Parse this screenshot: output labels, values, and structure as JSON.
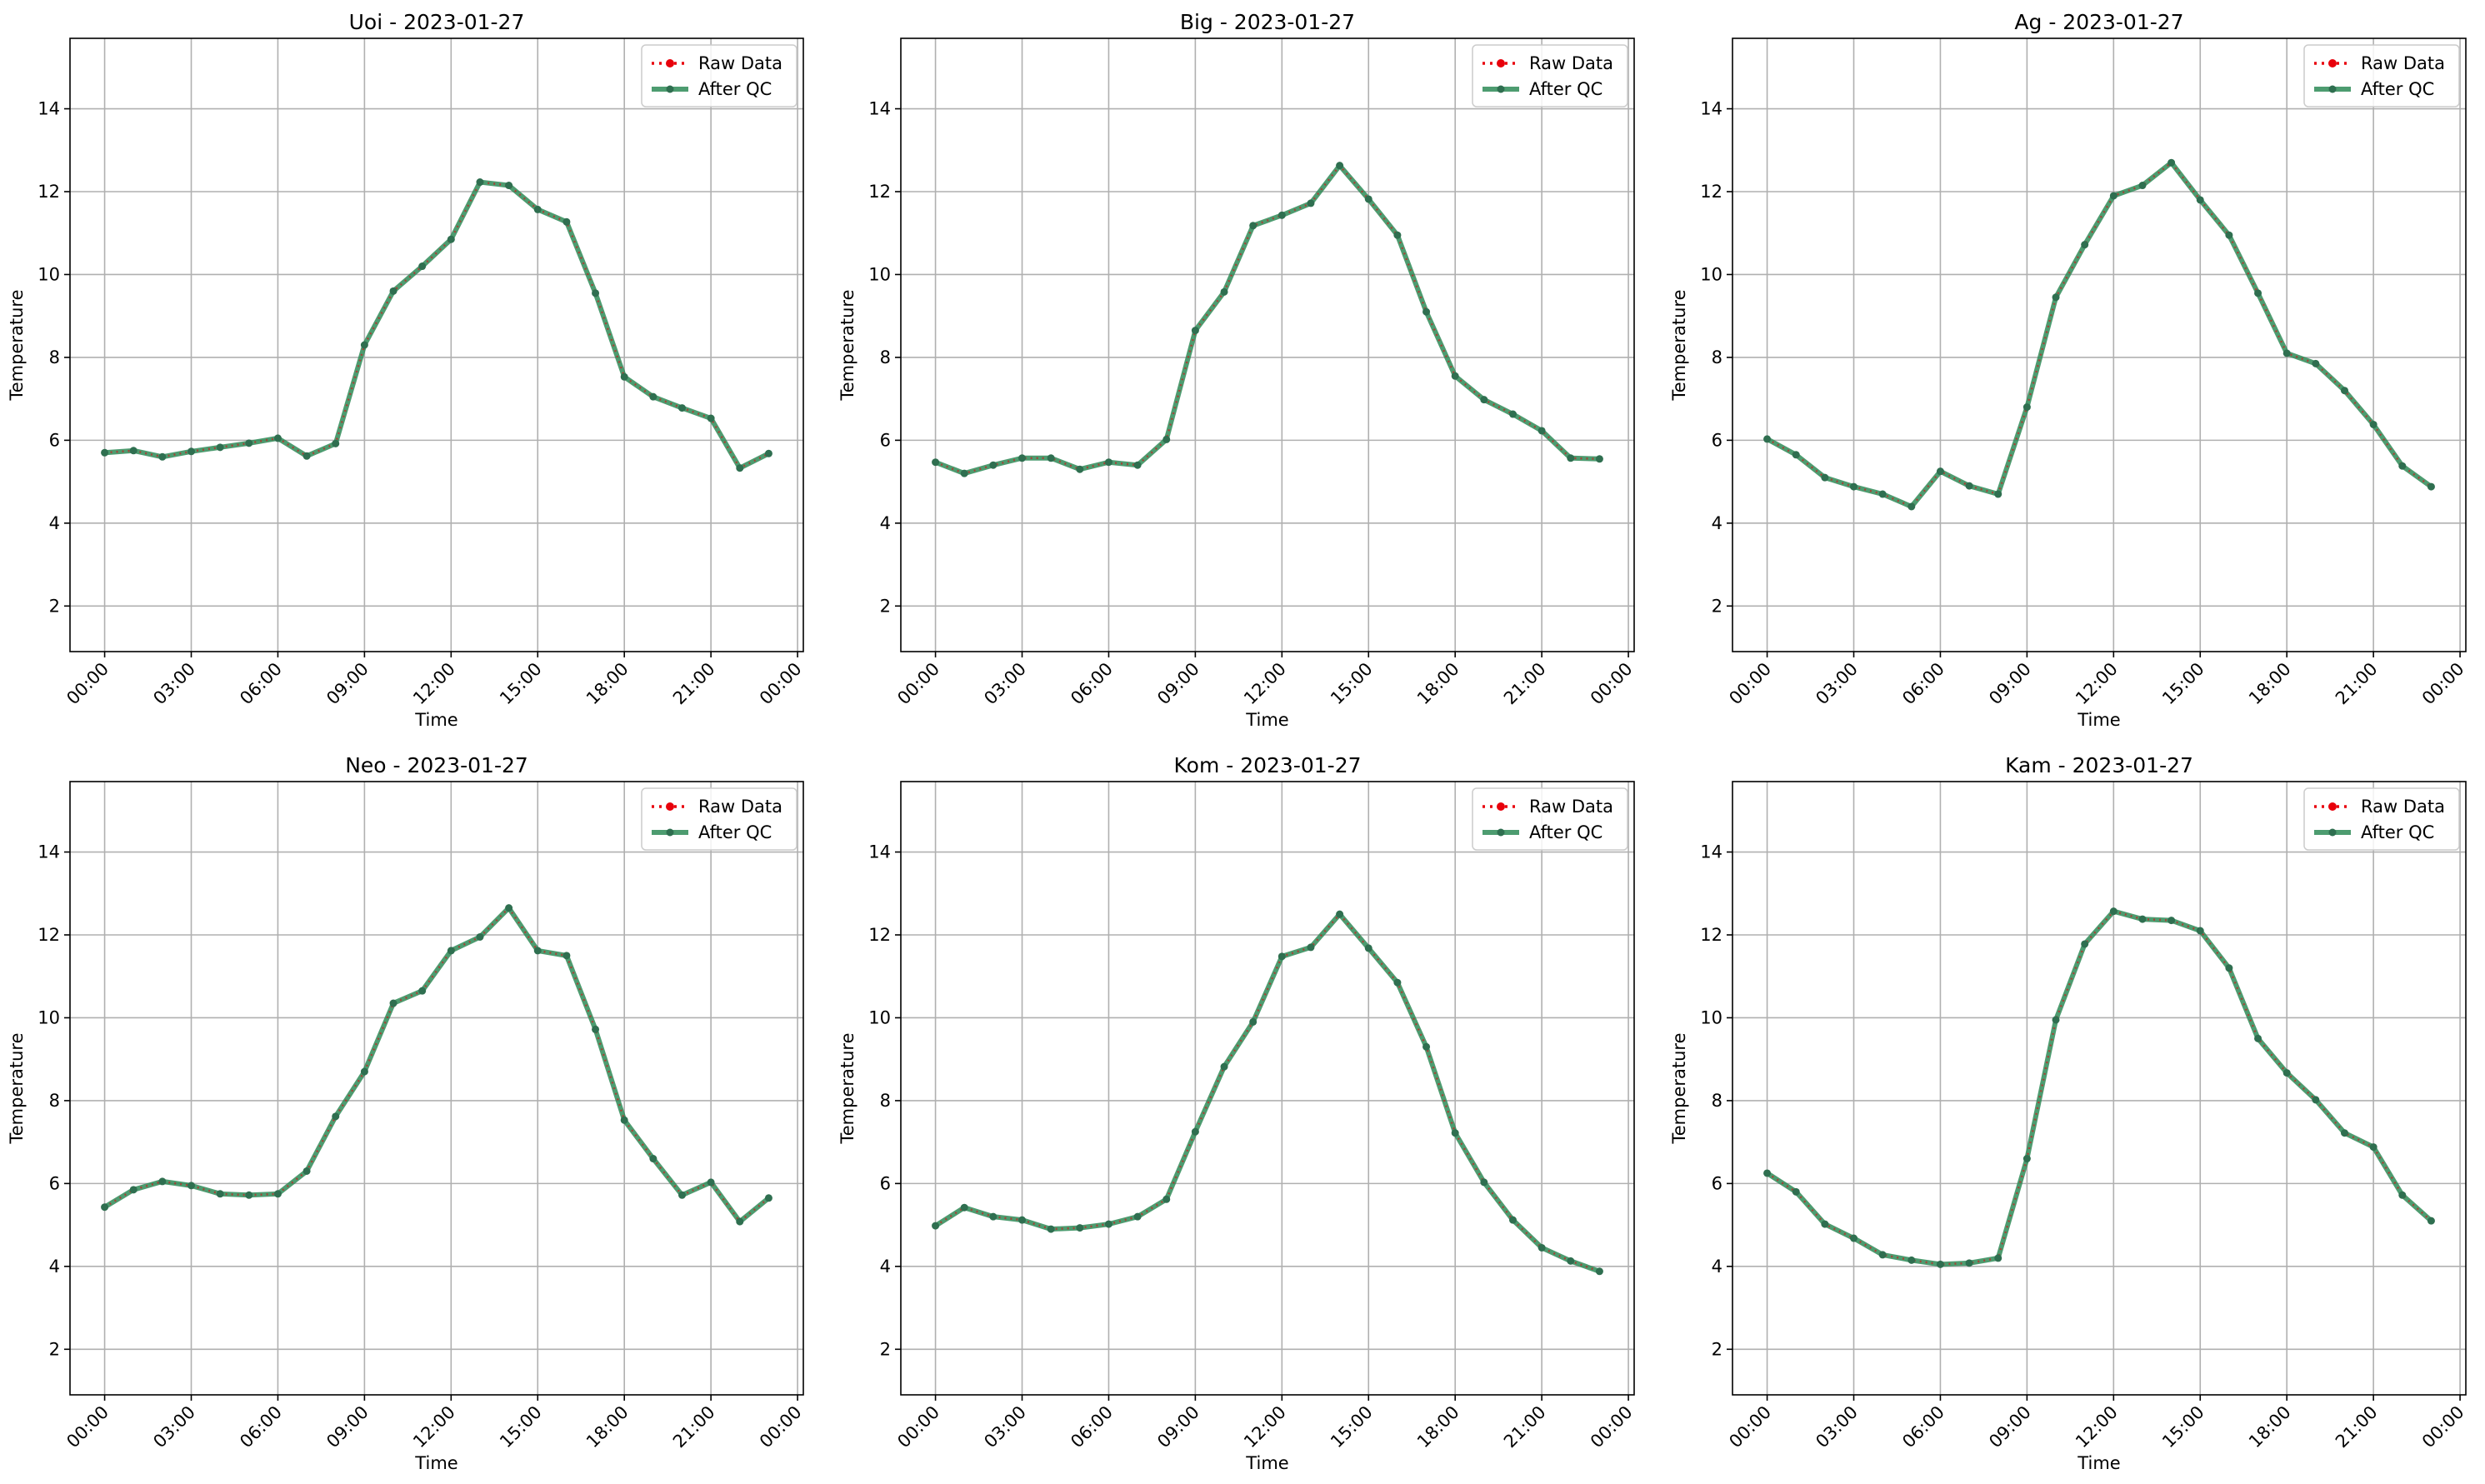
{
  "figure": {
    "colors": {
      "raw": "#e8000b",
      "qc": "#2e8b57",
      "qc_marker": "#2f6f50",
      "grid": "#b0b0b0",
      "axis": "#000000",
      "legend_border": "#cccccc"
    }
  },
  "chart_data": [
    {
      "type": "line",
      "title": "Uoi - 2023-01-27",
      "xlabel": "Time",
      "ylabel": "Temperature",
      "x_ticks": [
        "00:00",
        "03:00",
        "06:00",
        "09:00",
        "12:00",
        "15:00",
        "18:00",
        "21:00",
        "00:00"
      ],
      "y_ticks": [
        "2",
        "4",
        "6",
        "8",
        "10",
        "12",
        "14"
      ],
      "xlim_hours": [
        -1.2,
        24.2
      ],
      "ylim": [
        0.9,
        15.7
      ],
      "grid": true,
      "legend": "top-right",
      "x_hours": [
        0,
        1,
        2,
        3,
        4,
        5,
        6,
        7,
        8,
        9,
        10,
        11,
        12,
        13,
        14,
        15,
        16,
        17,
        18,
        19,
        20,
        21,
        22,
        23
      ],
      "series": [
        {
          "name": "Raw Data",
          "values": [
            5.7,
            5.75,
            5.6,
            5.73,
            5.83,
            5.93,
            6.05,
            5.62,
            5.92,
            8.3,
            9.6,
            10.2,
            10.85,
            12.23,
            12.15,
            11.57,
            11.27,
            9.55,
            7.53,
            7.05,
            6.78,
            6.53,
            5.33,
            5.68
          ]
        },
        {
          "name": "After QC",
          "values": [
            5.7,
            5.75,
            5.6,
            5.73,
            5.83,
            5.93,
            6.05,
            5.62,
            5.92,
            8.3,
            9.6,
            10.2,
            10.85,
            12.23,
            12.15,
            11.57,
            11.27,
            9.55,
            7.53,
            7.05,
            6.78,
            6.53,
            5.33,
            5.68
          ]
        }
      ]
    },
    {
      "type": "line",
      "title": "Big - 2023-01-27",
      "xlabel": "Time",
      "ylabel": "Temperature",
      "x_ticks": [
        "00:00",
        "03:00",
        "06:00",
        "09:00",
        "12:00",
        "15:00",
        "18:00",
        "21:00",
        "00:00"
      ],
      "y_ticks": [
        "2",
        "4",
        "6",
        "8",
        "10",
        "12",
        "14"
      ],
      "xlim_hours": [
        -1.2,
        24.2
      ],
      "ylim": [
        0.9,
        15.7
      ],
      "grid": true,
      "legend": "top-right",
      "x_hours": [
        0,
        1,
        2,
        3,
        4,
        5,
        6,
        7,
        8,
        9,
        10,
        11,
        12,
        13,
        14,
        15,
        16,
        17,
        18,
        19,
        20,
        21,
        22,
        23
      ],
      "series": [
        {
          "name": "Raw Data",
          "values": [
            5.47,
            5.2,
            5.4,
            5.57,
            5.57,
            5.3,
            5.47,
            5.4,
            6.02,
            8.65,
            9.58,
            11.18,
            11.43,
            11.72,
            12.63,
            11.82,
            10.95,
            9.1,
            7.55,
            6.98,
            6.63,
            6.23,
            5.57,
            5.55
          ]
        },
        {
          "name": "After QC",
          "values": [
            5.47,
            5.2,
            5.4,
            5.57,
            5.57,
            5.3,
            5.47,
            5.4,
            6.02,
            8.65,
            9.58,
            11.18,
            11.43,
            11.72,
            12.63,
            11.82,
            10.95,
            9.1,
            7.55,
            6.98,
            6.63,
            6.23,
            5.57,
            5.55
          ]
        }
      ]
    },
    {
      "type": "line",
      "title": "Ag - 2023-01-27",
      "xlabel": "Time",
      "ylabel": "Temperature",
      "x_ticks": [
        "00:00",
        "03:00",
        "06:00",
        "09:00",
        "12:00",
        "15:00",
        "18:00",
        "21:00",
        "00:00"
      ],
      "y_ticks": [
        "2",
        "4",
        "6",
        "8",
        "10",
        "12",
        "14"
      ],
      "xlim_hours": [
        -1.2,
        24.2
      ],
      "ylim": [
        0.9,
        15.7
      ],
      "grid": true,
      "legend": "top-right",
      "x_hours": [
        0,
        1,
        2,
        3,
        4,
        5,
        6,
        7,
        8,
        9,
        10,
        11,
        12,
        13,
        14,
        15,
        16,
        17,
        18,
        19,
        20,
        21,
        22,
        23
      ],
      "series": [
        {
          "name": "Raw Data",
          "values": [
            6.03,
            5.65,
            5.1,
            4.88,
            4.7,
            4.4,
            5.25,
            4.9,
            4.7,
            6.8,
            9.45,
            10.72,
            11.9,
            12.15,
            12.7,
            11.8,
            10.95,
            9.55,
            8.1,
            7.85,
            7.2,
            6.38,
            5.38,
            4.88
          ]
        },
        {
          "name": "After QC",
          "values": [
            6.03,
            5.65,
            5.1,
            4.88,
            4.7,
            4.4,
            5.25,
            4.9,
            4.7,
            6.8,
            9.45,
            10.72,
            11.9,
            12.15,
            12.7,
            11.8,
            10.95,
            9.55,
            8.1,
            7.85,
            7.2,
            6.38,
            5.38,
            4.88
          ]
        }
      ]
    },
    {
      "type": "line",
      "title": "Neo - 2023-01-27",
      "xlabel": "Time",
      "ylabel": "Temperature",
      "x_ticks": [
        "00:00",
        "03:00",
        "06:00",
        "09:00",
        "12:00",
        "15:00",
        "18:00",
        "21:00",
        "00:00"
      ],
      "y_ticks": [
        "2",
        "4",
        "6",
        "8",
        "10",
        "12",
        "14"
      ],
      "xlim_hours": [
        -1.2,
        24.2
      ],
      "ylim": [
        0.9,
        15.7
      ],
      "grid": true,
      "legend": "top-right",
      "x_hours": [
        0,
        1,
        2,
        3,
        4,
        5,
        6,
        7,
        8,
        9,
        10,
        11,
        12,
        13,
        14,
        15,
        16,
        17,
        18,
        19,
        20,
        21,
        22,
        23
      ],
      "series": [
        {
          "name": "Raw Data",
          "values": [
            5.43,
            5.85,
            6.05,
            5.95,
            5.75,
            5.72,
            5.75,
            6.3,
            7.62,
            8.7,
            10.35,
            10.65,
            11.62,
            11.95,
            12.65,
            11.62,
            11.5,
            9.72,
            7.53,
            6.6,
            5.72,
            6.03,
            5.08,
            5.65
          ]
        },
        {
          "name": "After QC",
          "values": [
            5.43,
            5.85,
            6.05,
            5.95,
            5.75,
            5.72,
            5.75,
            6.3,
            7.62,
            8.7,
            10.35,
            10.65,
            11.62,
            11.95,
            12.65,
            11.62,
            11.5,
            9.72,
            7.53,
            6.6,
            5.72,
            6.03,
            5.08,
            5.65
          ]
        }
      ]
    },
    {
      "type": "line",
      "title": "Kom - 2023-01-27",
      "xlabel": "Time",
      "ylabel": "Temperature",
      "x_ticks": [
        "00:00",
        "03:00",
        "06:00",
        "09:00",
        "12:00",
        "15:00",
        "18:00",
        "21:00",
        "00:00"
      ],
      "y_ticks": [
        "2",
        "4",
        "6",
        "8",
        "10",
        "12",
        "14"
      ],
      "xlim_hours": [
        -1.2,
        24.2
      ],
      "ylim": [
        0.9,
        15.7
      ],
      "grid": true,
      "legend": "top-right",
      "x_hours": [
        0,
        1,
        2,
        3,
        4,
        5,
        6,
        7,
        8,
        9,
        10,
        11,
        12,
        13,
        14,
        15,
        16,
        17,
        18,
        19,
        20,
        21,
        22,
        23
      ],
      "series": [
        {
          "name": "Raw Data",
          "values": [
            4.98,
            5.42,
            5.2,
            5.12,
            4.9,
            4.93,
            5.02,
            5.2,
            5.62,
            7.25,
            8.82,
            9.9,
            11.48,
            11.7,
            12.5,
            11.68,
            10.85,
            9.3,
            7.22,
            6.03,
            5.12,
            4.45,
            4.13,
            3.88
          ]
        },
        {
          "name": "After QC",
          "values": [
            4.98,
            5.42,
            5.2,
            5.12,
            4.9,
            4.93,
            5.02,
            5.2,
            5.62,
            7.25,
            8.82,
            9.9,
            11.48,
            11.7,
            12.5,
            11.68,
            10.85,
            9.3,
            7.22,
            6.03,
            5.12,
            4.45,
            4.13,
            3.88
          ]
        }
      ]
    },
    {
      "type": "line",
      "title": "Kam - 2023-01-27",
      "xlabel": "Time",
      "ylabel": "Temperature",
      "x_ticks": [
        "00:00",
        "03:00",
        "06:00",
        "09:00",
        "12:00",
        "15:00",
        "18:00",
        "21:00",
        "00:00"
      ],
      "y_ticks": [
        "2",
        "4",
        "6",
        "8",
        "10",
        "12",
        "14"
      ],
      "xlim_hours": [
        -1.2,
        24.2
      ],
      "ylim": [
        0.9,
        15.7
      ],
      "grid": true,
      "legend": "top-right",
      "x_hours": [
        0,
        1,
        2,
        3,
        4,
        5,
        6,
        7,
        8,
        9,
        10,
        11,
        12,
        13,
        14,
        15,
        16,
        17,
        18,
        19,
        20,
        21,
        22,
        23
      ],
      "series": [
        {
          "name": "Raw Data",
          "values": [
            6.25,
            5.8,
            5.02,
            4.68,
            4.28,
            4.15,
            4.05,
            4.08,
            4.2,
            6.6,
            9.95,
            11.78,
            12.57,
            12.38,
            12.35,
            12.1,
            11.2,
            9.5,
            8.67,
            8.02,
            7.22,
            6.88,
            5.72,
            5.1
          ]
        },
        {
          "name": "After QC",
          "values": [
            6.25,
            5.8,
            5.02,
            4.68,
            4.28,
            4.15,
            4.05,
            4.08,
            4.2,
            6.6,
            9.95,
            11.78,
            12.57,
            12.38,
            12.35,
            12.1,
            11.2,
            9.5,
            8.67,
            8.02,
            7.22,
            6.88,
            5.72,
            5.1
          ]
        }
      ]
    }
  ]
}
